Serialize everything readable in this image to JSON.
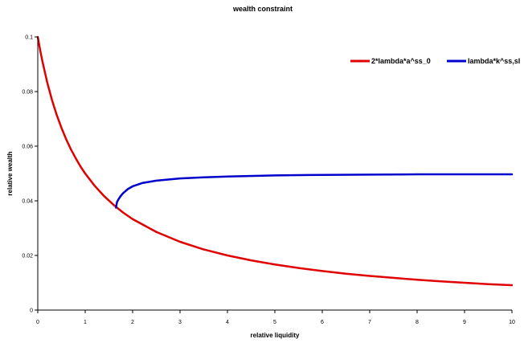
{
  "chart_data": {
    "type": "line",
    "title": "wealth constraint",
    "xlabel": "relative liquidity",
    "ylabel": "relative wealth",
    "xlim": [
      0,
      10
    ],
    "ylim": [
      0,
      0.1
    ],
    "x_ticks": [
      "0",
      "1",
      "2",
      "3",
      "4",
      "5",
      "6",
      "7",
      "8",
      "9",
      "10"
    ],
    "y_ticks": [
      "0",
      "0.02",
      "0.04",
      "0.06",
      "0.08",
      "0.1"
    ],
    "legend_position": "top-right",
    "grid": false,
    "series": [
      {
        "name": "2*lambda*a^ss_0",
        "color": "#e00000",
        "x": [
          0,
          0.05,
          0.1,
          0.2,
          0.3,
          0.4,
          0.5,
          0.6,
          0.7,
          0.8,
          0.9,
          1.0,
          1.2,
          1.4,
          1.6,
          1.8,
          2.0,
          2.5,
          3.0,
          3.5,
          4.0,
          4.5,
          5.0,
          5.5,
          6.0,
          6.5,
          7.0,
          7.5,
          8.0,
          8.5,
          9.0,
          9.5,
          10.0
        ],
        "y": [
          0.1,
          0.0952,
          0.0909,
          0.0833,
          0.0769,
          0.0714,
          0.0667,
          0.0625,
          0.0588,
          0.0556,
          0.0526,
          0.05,
          0.0455,
          0.0417,
          0.0385,
          0.0357,
          0.0333,
          0.0286,
          0.025,
          0.0222,
          0.02,
          0.0182,
          0.0167,
          0.0154,
          0.0143,
          0.0133,
          0.0125,
          0.0118,
          0.0111,
          0.0105,
          0.01,
          0.0095,
          0.0091
        ]
      },
      {
        "name": "lambda*k^ss,sl",
        "color": "#0000cc",
        "x": [
          1.65,
          1.67,
          1.7,
          1.75,
          1.8,
          1.9,
          2.0,
          2.2,
          2.5,
          3.0,
          3.5,
          4.0,
          5.0,
          6.0,
          7.0,
          8.0,
          9.0,
          10.0
        ],
        "y": [
          0.0375,
          0.0395,
          0.0405,
          0.0418,
          0.0428,
          0.0443,
          0.0453,
          0.0465,
          0.0474,
          0.0482,
          0.0486,
          0.0489,
          0.0493,
          0.0495,
          0.0496,
          0.0497,
          0.0497,
          0.0497
        ]
      }
    ]
  }
}
